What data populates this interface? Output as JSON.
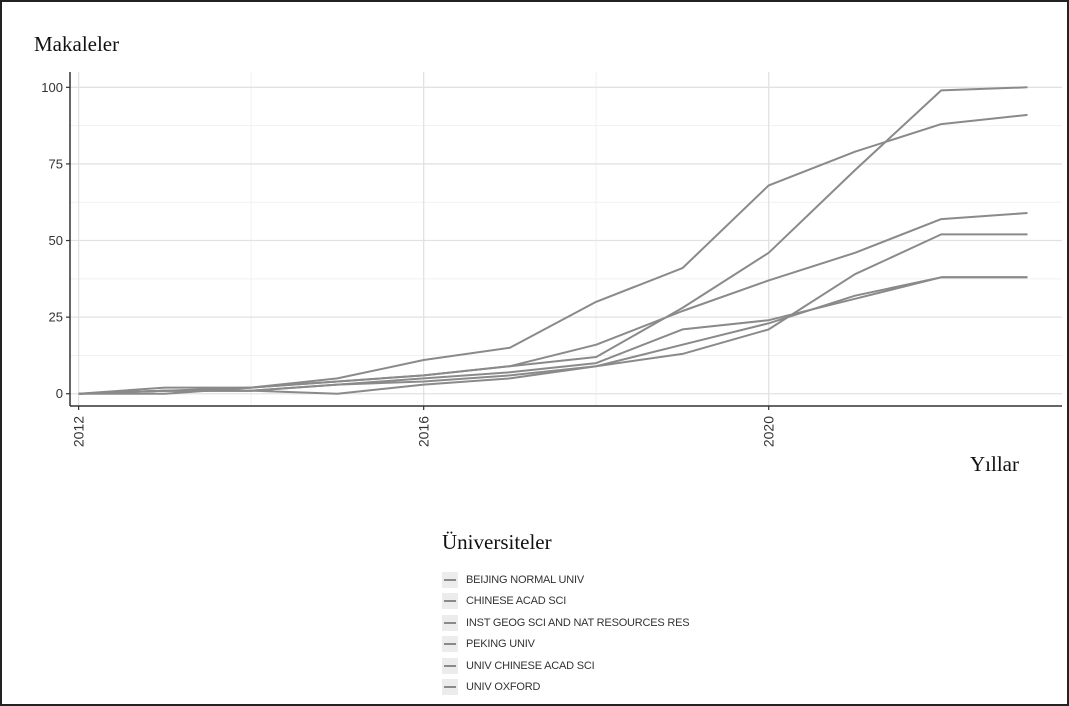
{
  "chart_data": {
    "type": "line",
    "title": "",
    "ylabel": "Makaleler",
    "xlabel": "Yıllar",
    "xlim": [
      2011.9,
      2023.4
    ],
    "ylim": [
      -4,
      105
    ],
    "x_ticks": [
      2012,
      2016,
      2020
    ],
    "y_ticks": [
      0,
      25,
      50,
      75,
      100
    ],
    "grid": true,
    "legend_title": "Üniversiteler",
    "legend_position": "bottom",
    "line_color": "#8a8a8a",
    "x": [
      2012,
      2013,
      2014,
      2015,
      2016,
      2017,
      2018,
      2019,
      2020,
      2021,
      2022,
      2023
    ],
    "series": [
      {
        "name": "BEIJING NORMAL UNIV",
        "values": [
          0,
          1,
          1,
          3,
          5,
          7,
          10,
          21,
          24,
          31,
          38,
          38
        ]
      },
      {
        "name": "CHINESE ACAD SCI",
        "values": [
          0,
          2,
          2,
          5,
          11,
          15,
          30,
          41,
          68,
          79,
          88,
          91
        ]
      },
      {
        "name": "INST GEOG SCI AND NAT RESOURCES RES",
        "values": [
          0,
          0,
          2,
          4,
          6,
          9,
          12,
          28,
          46,
          73,
          99,
          100
        ]
      },
      {
        "name": "PEKING UNIV",
        "values": [
          0,
          1,
          1,
          3,
          4,
          6,
          9,
          13,
          21,
          39,
          52,
          52
        ]
      },
      {
        "name": "UNIV CHINESE ACAD SCI",
        "values": [
          0,
          1,
          2,
          4,
          6,
          9,
          16,
          27,
          37,
          46,
          57,
          59
        ]
      },
      {
        "name": "UNIV OXFORD",
        "values": [
          0,
          1,
          1,
          0,
          3,
          5,
          9,
          16,
          23,
          32,
          38,
          38
        ]
      }
    ]
  }
}
